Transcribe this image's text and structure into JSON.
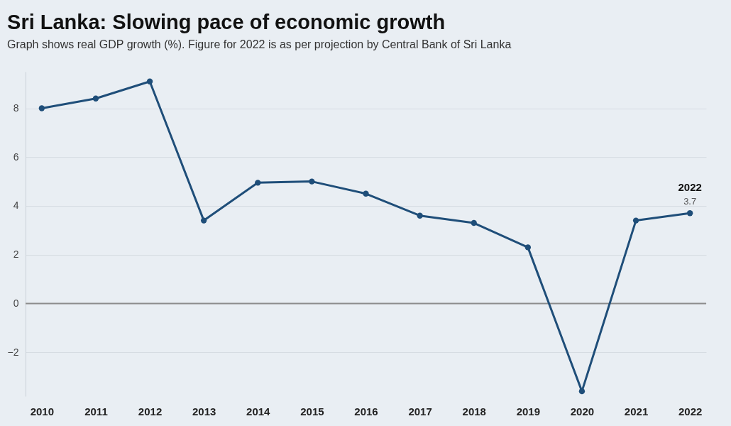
{
  "chart_data": {
    "type": "line",
    "title": "Sri Lanka: Slowing pace of economic growth",
    "subtitle": "Graph shows real GDP growth (%). Figure for 2022 is as per projection by Central Bank of Sri Lanka",
    "categories": [
      "2010",
      "2011",
      "2012",
      "2013",
      "2014",
      "2015",
      "2016",
      "2017",
      "2018",
      "2019",
      "2020",
      "2021",
      "2022"
    ],
    "series": [
      {
        "color": "#1f4e79",
        "values": [
          8.0,
          8.4,
          9.1,
          3.4,
          4.95,
          5.0,
          4.5,
          3.6,
          3.3,
          2.3,
          -3.6,
          3.4,
          3.7
        ],
        "value_labels": [
          null,
          null,
          null,
          null,
          null,
          null,
          null,
          null,
          null,
          null,
          null,
          null,
          "3.7"
        ]
      }
    ],
    "annotations": [
      {
        "text": "2022",
        "x": "2022",
        "y": 3.7
      }
    ],
    "ylim": [
      -3.8,
      9.5
    ],
    "yticks": [
      -2,
      0,
      2,
      4,
      6,
      8
    ],
    "ref_lines": [
      {
        "axis": "y",
        "value": 0,
        "color": "#8c8c8c"
      }
    ],
    "grid": "y",
    "marker": "circle",
    "line_style": "solid"
  }
}
